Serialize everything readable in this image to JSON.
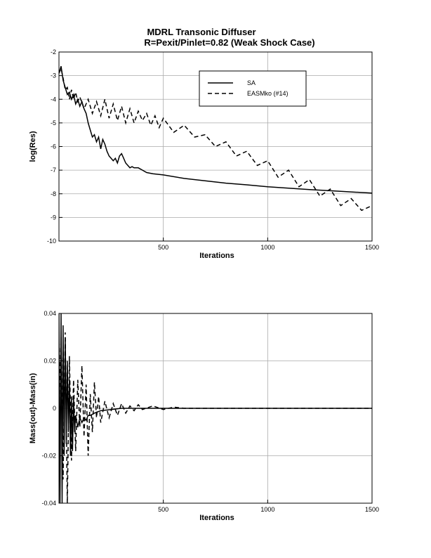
{
  "figure": {
    "title_line1": "MDRL Transonic Diffuser",
    "title_line2": "R=Pexit/Pinlet=0.82 (Weak Shock Case)"
  },
  "chart_data": [
    {
      "type": "line",
      "xlabel": "Iterations",
      "ylabel": "log(Res)",
      "xlim": [
        0,
        1500
      ],
      "ylim": [
        -10,
        -2
      ],
      "xticks": [
        500,
        1000,
        1500
      ],
      "yticks": [
        -10,
        -9,
        -8,
        -7,
        -6,
        -5,
        -4,
        -3,
        -2
      ],
      "grid": true,
      "legend_position": "top-right",
      "series": [
        {
          "name": "SA",
          "style": "solid",
          "x": [
            0,
            10,
            20,
            30,
            40,
            50,
            60,
            70,
            80,
            90,
            100,
            110,
            120,
            130,
            140,
            150,
            160,
            170,
            180,
            190,
            200,
            210,
            220,
            230,
            240,
            250,
            260,
            270,
            280,
            290,
            300,
            310,
            320,
            330,
            340,
            350,
            360,
            380,
            400,
            420,
            450,
            500,
            600,
            700,
            800,
            900,
            1000,
            1100,
            1200,
            1300,
            1400,
            1500
          ],
          "y": [
            -2.9,
            -2.6,
            -3.2,
            -3.5,
            -3.8,
            -3.7,
            -4.0,
            -3.8,
            -4.2,
            -4.0,
            -4.3,
            -4.1,
            -4.4,
            -4.6,
            -5.0,
            -5.3,
            -5.6,
            -5.5,
            -5.8,
            -5.6,
            -6.1,
            -5.7,
            -5.9,
            -6.2,
            -6.4,
            -6.5,
            -6.6,
            -6.5,
            -6.7,
            -6.4,
            -6.3,
            -6.5,
            -6.7,
            -6.8,
            -6.9,
            -6.85,
            -6.9,
            -6.9,
            -7.0,
            -7.1,
            -7.15,
            -7.2,
            -7.35,
            -7.45,
            -7.55,
            -7.62,
            -7.7,
            -7.76,
            -7.82,
            -7.87,
            -7.92,
            -7.97
          ]
        },
        {
          "name": "EASMko (#14)",
          "style": "dashed",
          "x": [
            0,
            10,
            20,
            30,
            40,
            50,
            60,
            70,
            80,
            90,
            100,
            120,
            140,
            160,
            180,
            200,
            220,
            240,
            260,
            280,
            300,
            320,
            340,
            360,
            380,
            400,
            420,
            440,
            460,
            480,
            500,
            550,
            600,
            650,
            700,
            750,
            800,
            850,
            900,
            950,
            1000,
            1050,
            1100,
            1150,
            1200,
            1250,
            1300,
            1350,
            1400,
            1450,
            1500
          ],
          "y": [
            -2.9,
            -2.7,
            -3.1,
            -3.6,
            -3.5,
            -4.0,
            -3.6,
            -4.0,
            -3.7,
            -4.1,
            -3.9,
            -4.4,
            -4.0,
            -4.6,
            -4.1,
            -4.7,
            -4.0,
            -4.8,
            -4.2,
            -4.9,
            -4.3,
            -5.0,
            -4.4,
            -5.0,
            -4.5,
            -4.9,
            -4.6,
            -5.1,
            -4.7,
            -5.2,
            -4.8,
            -5.4,
            -5.1,
            -5.6,
            -5.5,
            -6.0,
            -5.8,
            -6.4,
            -6.2,
            -6.8,
            -6.6,
            -7.3,
            -7.0,
            -7.7,
            -7.4,
            -8.1,
            -7.8,
            -8.5,
            -8.2,
            -8.7,
            -8.5
          ]
        }
      ]
    },
    {
      "type": "line",
      "xlabel": "Iterations",
      "ylabel": "Mass(out)-Mass(in)",
      "xlim": [
        0,
        1500
      ],
      "ylim": [
        -0.04,
        0.04
      ],
      "xticks": [
        500,
        1000,
        1500
      ],
      "yticks": [
        -0.04,
        -0.02,
        0,
        0.02,
        0.04
      ],
      "grid": true,
      "series": [
        {
          "style": "solid",
          "x": [
            0,
            5,
            10,
            15,
            20,
            25,
            30,
            35,
            40,
            45,
            50,
            55,
            60,
            65,
            70,
            75,
            80,
            90,
            100,
            110,
            120,
            130,
            140,
            150,
            170,
            200,
            250,
            300,
            400,
            500,
            1500
          ],
          "y": [
            0.04,
            -0.04,
            0.04,
            -0.04,
            0.035,
            -0.02,
            0.03,
            -0.015,
            0.02,
            -0.01,
            0.012,
            -0.02,
            0.005,
            -0.018,
            0.004,
            -0.01,
            -0.003,
            -0.008,
            -0.004,
            -0.006,
            -0.004,
            -0.005,
            -0.003,
            -0.003,
            -0.002,
            -0.001,
            -0.0005,
            0.0,
            0.0,
            0.0,
            0.0
          ]
        },
        {
          "style": "dashed",
          "x": [
            0,
            10,
            20,
            30,
            40,
            50,
            60,
            70,
            80,
            90,
            100,
            110,
            120,
            130,
            140,
            150,
            160,
            170,
            180,
            190,
            200,
            220,
            240,
            260,
            280,
            300,
            320,
            340,
            360,
            380,
            400,
            450,
            500,
            550,
            600,
            650,
            700,
            1500
          ],
          "y": [
            0.0,
            0.03,
            -0.03,
            0.032,
            -0.04,
            0.022,
            -0.022,
            0.012,
            -0.018,
            0.012,
            -0.008,
            0.018,
            -0.012,
            0.01,
            -0.02,
            0.006,
            -0.01,
            0.011,
            -0.004,
            0.005,
            -0.006,
            0.003,
            -0.004,
            0.002,
            -0.003,
            0.002,
            -0.002,
            0.001,
            -0.001,
            0.0015,
            -0.0005,
            0.001,
            -0.0005,
            0.0005,
            0.0,
            0.0,
            0.0,
            0.0
          ]
        }
      ]
    }
  ]
}
